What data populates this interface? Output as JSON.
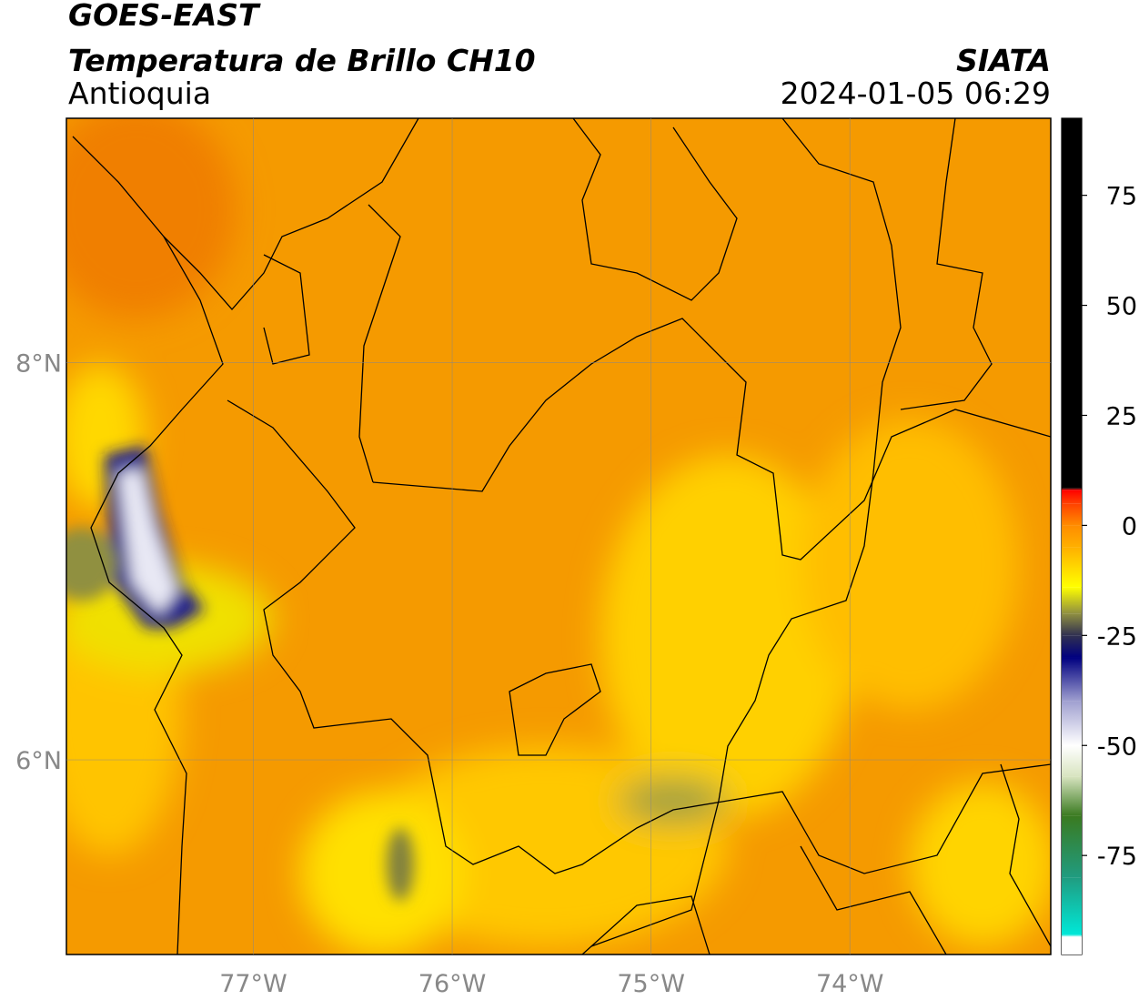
{
  "header": {
    "title": "GOES-EAST",
    "subtitle": "Temperatura de Brillo CH10",
    "region": "Antioquia",
    "source": "SIATA",
    "datetime": "2024-01-05 06:29"
  },
  "map": {
    "xlim": [
      -77.94,
      -72.99
    ],
    "ylim": [
      5.02,
      9.23
    ],
    "xticks": [
      {
        "value": -77,
        "label": "77°W"
      },
      {
        "value": -76,
        "label": "76°W"
      },
      {
        "value": -75,
        "label": "75°W"
      },
      {
        "value": -74,
        "label": "74°W"
      }
    ],
    "yticks": [
      {
        "value": 8,
        "label": "8°N"
      },
      {
        "value": 6,
        "label": "6°N"
      }
    ],
    "grid": true
  },
  "colorbar": {
    "lim": [
      -97.5,
      92.5
    ],
    "ticks": [
      75,
      50,
      25,
      0,
      -25,
      -50,
      -75
    ],
    "stops": [
      {
        "value": -97.5,
        "color": "#ffffff"
      },
      {
        "value": -93.5,
        "color": "#ffffff"
      },
      {
        "value": -93,
        "color": "#00e8d8"
      },
      {
        "value": -80,
        "color": "#209c80"
      },
      {
        "value": -66,
        "color": "#3a7a20"
      },
      {
        "value": -57,
        "color": "#d8e4c0"
      },
      {
        "value": -50,
        "color": "#ffffff"
      },
      {
        "value": -40,
        "color": "#a0a0d0"
      },
      {
        "value": -30,
        "color": "#000080"
      },
      {
        "value": -25,
        "color": "#303050"
      },
      {
        "value": -20,
        "color": "#909040"
      },
      {
        "value": -14,
        "color": "#ffff00"
      },
      {
        "value": -5,
        "color": "#ffb000"
      },
      {
        "value": 0,
        "color": "#ff8c00"
      },
      {
        "value": 5,
        "color": "#ff4000"
      },
      {
        "value": 8,
        "color": "#ff0000"
      },
      {
        "value": 8.5,
        "color": "#000000"
      },
      {
        "value": 92.5,
        "color": "#000000"
      }
    ]
  }
}
